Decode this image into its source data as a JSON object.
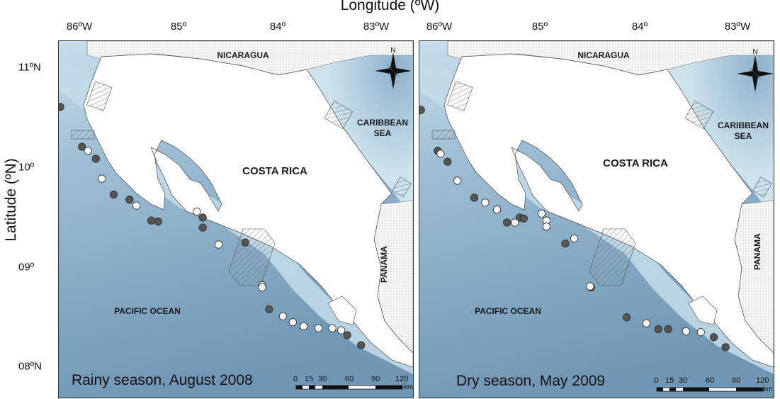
{
  "axes": {
    "x_title": "Longitude (ºW)",
    "y_title": "Latitude (ºN)",
    "x_ticks_left": [
      "86ºW",
      "85º",
      "84º",
      "83ºW"
    ],
    "x_ticks_right": [
      "86ºW",
      "85º",
      "84º",
      "83ºW"
    ],
    "y_ticks": [
      "11ºN",
      "10º",
      "09º",
      "08ºN"
    ]
  },
  "labels": {
    "nicaragua": "NICARAGUA",
    "costa_rica": "COSTA RICA",
    "caribbean_sea": "CARIBBEAN SEA",
    "panama": "PANAMA",
    "pacific_ocean": "PACIFIC OCEAN",
    "north": "N"
  },
  "panels": [
    {
      "caption": "Rainy season, August 2008"
    },
    {
      "caption": "Dry season, May 2009"
    }
  ],
  "scale_bar": {
    "ticks": [
      "0",
      "15",
      "30",
      "60",
      "90",
      "120"
    ],
    "unit": "km"
  },
  "colors": {
    "ocean_shallow": "#cfe2ec",
    "ocean_deep": "#6f97b5",
    "land": "#ffffff",
    "neighbor_land": "#f4f4f4",
    "station_filled": "#555555",
    "station_open": "#ffffff"
  },
  "chart_data": {
    "type": "scatter",
    "legend": "none",
    "x_range": [
      -86.2,
      -82.6
    ],
    "y_range": [
      7.85,
      11.2
    ],
    "panels": [
      {
        "panel": "Rainy season, August 2008",
        "series": [
          {
            "marker": "filled",
            "points": [
              [
                -86.24,
                10.6
              ],
              [
                -86.2,
                10.61
              ],
              [
                -85.98,
                10.21
              ],
              [
                -85.84,
                10.09
              ],
              [
                -85.66,
                9.73
              ],
              [
                -85.5,
                9.68
              ],
              [
                -85.28,
                9.47
              ],
              [
                -85.21,
                9.46
              ],
              [
                -84.76,
                9.5
              ],
              [
                -84.76,
                9.4
              ],
              [
                -84.33,
                9.25
              ],
              [
                -84.09,
                8.58
              ],
              [
                -83.3,
                8.32
              ],
              [
                -83.16,
                8.22
              ]
            ]
          },
          {
            "marker": "open",
            "points": [
              [
                -85.92,
                10.17
              ],
              [
                -85.78,
                9.89
              ],
              [
                -85.43,
                9.62
              ],
              [
                -84.82,
                9.56
              ],
              [
                -84.6,
                9.23
              ],
              [
                -84.16,
                8.82
              ],
              [
                -84.16,
                8.8
              ],
              [
                -83.95,
                8.51
              ],
              [
                -83.85,
                8.45
              ],
              [
                -83.74,
                8.41
              ],
              [
                -83.59,
                8.39
              ],
              [
                -83.45,
                8.39
              ],
              [
                -83.36,
                8.37
              ]
            ]
          }
        ]
      },
      {
        "panel": "Dry season, May 2009",
        "series": [
          {
            "marker": "filled",
            "points": [
              [
                -86.24,
                10.56
              ],
              [
                -86.2,
                10.58
              ],
              [
                -86.03,
                10.17
              ],
              [
                -85.93,
                10.06
              ],
              [
                -85.66,
                9.7
              ],
              [
                -85.33,
                9.45
              ],
              [
                -85.2,
                9.5
              ],
              [
                -85.16,
                9.49
              ],
              [
                -84.74,
                9.24
              ],
              [
                -84.48,
                8.8
              ],
              [
                -84.12,
                8.5
              ],
              [
                -83.8,
                8.38
              ],
              [
                -83.7,
                8.38
              ],
              [
                -83.24,
                8.3
              ],
              [
                -83.12,
                8.2
              ]
            ]
          },
          {
            "marker": "open",
            "points": [
              [
                -86.0,
                10.14
              ],
              [
                -85.83,
                9.87
              ],
              [
                -85.55,
                9.65
              ],
              [
                -85.43,
                9.58
              ],
              [
                -85.25,
                9.45
              ],
              [
                -84.98,
                9.54
              ],
              [
                -84.93,
                9.47
              ],
              [
                -84.93,
                9.41
              ],
              [
                -84.65,
                9.29
              ],
              [
                -84.49,
                8.81
              ],
              [
                -83.92,
                8.44
              ],
              [
                -83.52,
                8.36
              ],
              [
                -83.37,
                8.35
              ]
            ]
          }
        ]
      }
    ]
  }
}
